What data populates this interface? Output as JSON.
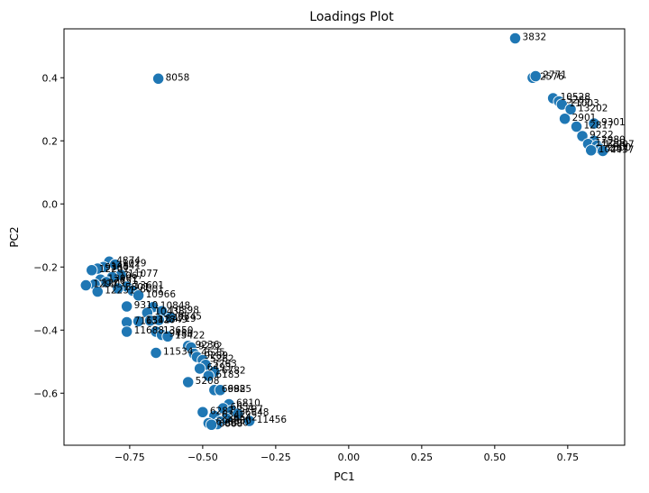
{
  "chart_data": {
    "type": "scatter",
    "title": "Loadings Plot",
    "xlabel": "PC1",
    "ylabel": "PC2",
    "xlim": [
      -0.975,
      0.945
    ],
    "ylim": [
      -0.765,
      0.555
    ],
    "xticks": [
      -0.75,
      -0.5,
      -0.25,
      0.0,
      0.25,
      0.5,
      0.75
    ],
    "xtick_labels": [
      "−0.75",
      "−0.50",
      "−0.25",
      "0.00",
      "0.25",
      "0.50",
      "0.75"
    ],
    "yticks": [
      -0.6,
      -0.4,
      -0.2,
      0.0,
      0.2,
      0.4
    ],
    "ytick_labels": [
      "−0.6",
      "−0.4",
      "−0.2",
      "0.0",
      "0.2",
      "0.4"
    ],
    "grid": false,
    "marker_color": "#1f77b4",
    "marker_edge_color": "#ffffff",
    "points": [
      {
        "x": 0.57,
        "y": 0.525,
        "label": "3832"
      },
      {
        "x": -0.652,
        "y": 0.397,
        "label": "8058"
      },
      {
        "x": 0.63,
        "y": 0.4,
        "label": "2576"
      },
      {
        "x": 0.64,
        "y": 0.405,
        "label": "2771"
      },
      {
        "x": 0.7,
        "y": 0.335,
        "label": "10528"
      },
      {
        "x": 0.72,
        "y": 0.325,
        "label": "5285"
      },
      {
        "x": 0.73,
        "y": 0.315,
        "label": "11003"
      },
      {
        "x": 0.76,
        "y": 0.3,
        "label": "13202"
      },
      {
        "x": 0.74,
        "y": 0.27,
        "label": "2901"
      },
      {
        "x": 0.84,
        "y": 0.255,
        "label": "9301"
      },
      {
        "x": 0.78,
        "y": 0.245,
        "label": "12817"
      },
      {
        "x": 0.8,
        "y": 0.215,
        "label": "9222"
      },
      {
        "x": 0.84,
        "y": 0.2,
        "label": "2980"
      },
      {
        "x": 0.82,
        "y": 0.19,
        "label": "11258"
      },
      {
        "x": 0.85,
        "y": 0.185,
        "label": "12297"
      },
      {
        "x": 0.86,
        "y": 0.175,
        "label": "2800"
      },
      {
        "x": 0.83,
        "y": 0.17,
        "label": "10297"
      },
      {
        "x": 0.87,
        "y": 0.168,
        "label": "4437"
      },
      {
        "x": -0.82,
        "y": -0.183,
        "label": "4874"
      },
      {
        "x": -0.8,
        "y": -0.192,
        "label": "1029"
      },
      {
        "x": -0.84,
        "y": -0.2,
        "label": "14841"
      },
      {
        "x": -0.86,
        "y": -0.205,
        "label": "9380"
      },
      {
        "x": -0.88,
        "y": -0.21,
        "label": "12201"
      },
      {
        "x": -0.78,
        "y": -0.225,
        "label": "11077"
      },
      {
        "x": -0.81,
        "y": -0.232,
        "label": "1067"
      },
      {
        "x": -0.85,
        "y": -0.24,
        "label": "13901"
      },
      {
        "x": -0.83,
        "y": -0.248,
        "label": "7651"
      },
      {
        "x": -0.87,
        "y": -0.255,
        "label": "1201"
      },
      {
        "x": -0.9,
        "y": -0.258,
        "label": "1294"
      },
      {
        "x": -0.76,
        "y": -0.262,
        "label": "13601"
      },
      {
        "x": -0.79,
        "y": -0.268,
        "label": "8801"
      },
      {
        "x": -0.74,
        "y": -0.275,
        "label": "6001"
      },
      {
        "x": -0.86,
        "y": -0.278,
        "label": "12231"
      },
      {
        "x": -0.72,
        "y": -0.29,
        "label": "10966"
      },
      {
        "x": -0.76,
        "y": -0.325,
        "label": "9310"
      },
      {
        "x": -0.67,
        "y": -0.327,
        "label": "10848"
      },
      {
        "x": -0.64,
        "y": -0.34,
        "label": "10398"
      },
      {
        "x": -0.69,
        "y": -0.345,
        "label": "10438"
      },
      {
        "x": -0.61,
        "y": -0.36,
        "label": "9845"
      },
      {
        "x": -0.76,
        "y": -0.375,
        "label": "7165"
      },
      {
        "x": -0.72,
        "y": -0.372,
        "label": "13417"
      },
      {
        "x": -0.68,
        "y": -0.37,
        "label": "12849"
      },
      {
        "x": -0.65,
        "y": -0.368,
        "label": "14719"
      },
      {
        "x": -0.76,
        "y": -0.405,
        "label": "11688"
      },
      {
        "x": -0.66,
        "y": -0.405,
        "label": "13650"
      },
      {
        "x": -0.64,
        "y": -0.415,
        "label": "9480"
      },
      {
        "x": -0.62,
        "y": -0.42,
        "label": "13422"
      },
      {
        "x": -0.66,
        "y": -0.472,
        "label": "11534"
      },
      {
        "x": -0.55,
        "y": -0.45,
        "label": "9236"
      },
      {
        "x": -0.54,
        "y": -0.455,
        "label": "9272"
      },
      {
        "x": -0.53,
        "y": -0.475,
        "label": "4625"
      },
      {
        "x": -0.52,
        "y": -0.485,
        "label": "9289"
      },
      {
        "x": -0.5,
        "y": -0.495,
        "label": "5262"
      },
      {
        "x": -0.49,
        "y": -0.51,
        "label": "5763"
      },
      {
        "x": -0.51,
        "y": -0.522,
        "label": "6493"
      },
      {
        "x": -0.46,
        "y": -0.532,
        "label": "6782"
      },
      {
        "x": -0.48,
        "y": -0.545,
        "label": "6183"
      },
      {
        "x": -0.55,
        "y": -0.565,
        "label": "5208"
      },
      {
        "x": -0.46,
        "y": -0.59,
        "label": "6982"
      },
      {
        "x": -0.44,
        "y": -0.59,
        "label": "6985"
      },
      {
        "x": -0.41,
        "y": -0.635,
        "label": "6810"
      },
      {
        "x": -0.43,
        "y": -0.648,
        "label": "6651"
      },
      {
        "x": -0.4,
        "y": -0.655,
        "label": "5797"
      },
      {
        "x": -0.38,
        "y": -0.665,
        "label": "6648"
      },
      {
        "x": -0.5,
        "y": -0.66,
        "label": "6287"
      },
      {
        "x": -0.46,
        "y": -0.672,
        "label": "6342"
      },
      {
        "x": -0.42,
        "y": -0.68,
        "label": "6542"
      },
      {
        "x": -0.34,
        "y": -0.688,
        "label": "11456"
      },
      {
        "x": -0.44,
        "y": -0.69,
        "label": "4880"
      },
      {
        "x": -0.48,
        "y": -0.695,
        "label": "6983"
      },
      {
        "x": -0.45,
        "y": -0.698,
        "label": "6690"
      },
      {
        "x": -0.47,
        "y": -0.7,
        "label": "6888"
      }
    ]
  }
}
